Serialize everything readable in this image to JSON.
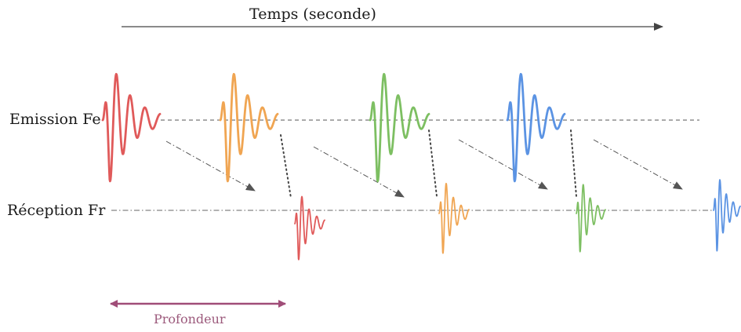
{
  "labels": {
    "time_axis": "Temps (seconde)",
    "emission": "Emission Fe",
    "reception": "Réception Fr",
    "depth": "Profondeur"
  },
  "colors": {
    "pulse_1": "#e05a5a",
    "pulse_2": "#f0a552",
    "pulse_3": "#7dbf62",
    "pulse_4": "#5b93e3",
    "depth_arrow": "#a04d78",
    "axis": "#444444"
  },
  "pulses": [
    {
      "color_key": "pulse_1",
      "has_echo": true
    },
    {
      "color_key": "pulse_2",
      "has_echo": true
    },
    {
      "color_key": "pulse_3",
      "has_echo": true
    },
    {
      "color_key": "pulse_4",
      "has_echo": true
    }
  ]
}
